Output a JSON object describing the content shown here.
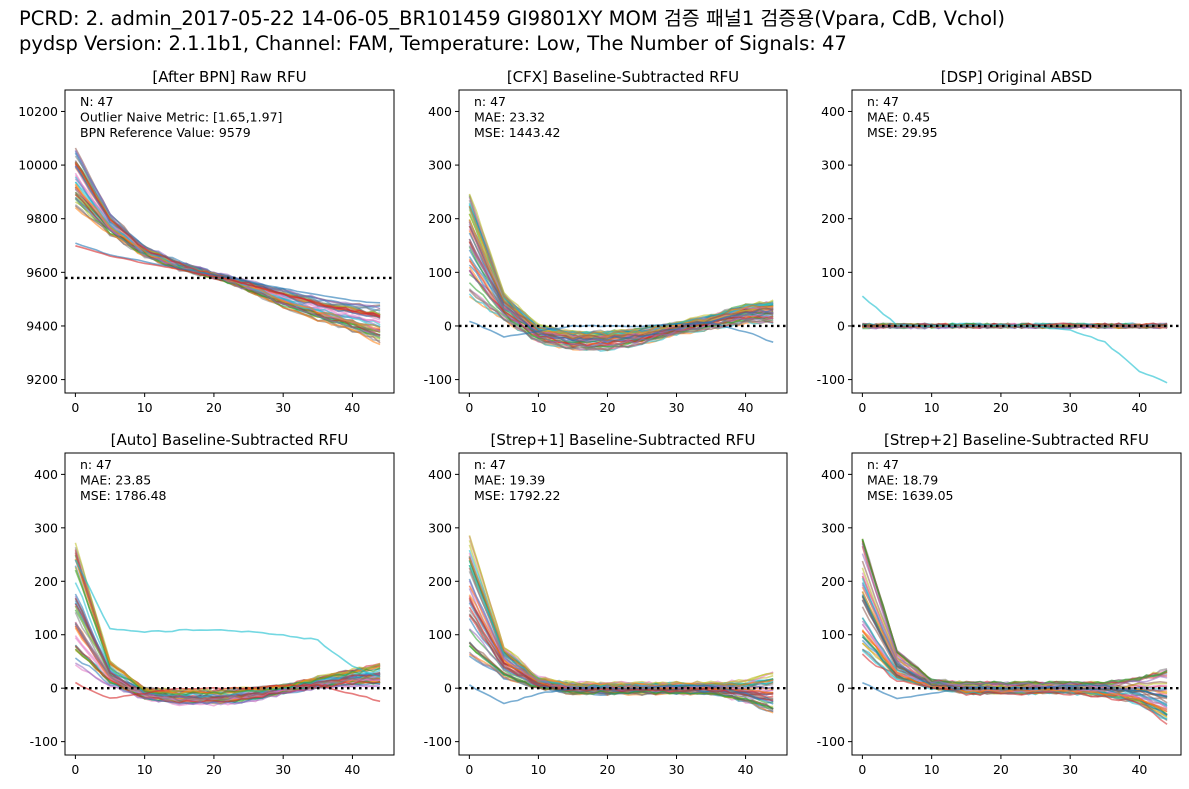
{
  "figure": {
    "suptitle_line1": "PCRD: 2. admin_2017-05-22 14-06-05_BR101459 GI9801XY MOM 검증 패널1 검증용(Vpara, CdB, Vchol)",
    "suptitle_line2": "pydsp Version: 2.1.1b1, Channel: FAM, Temperature: Low, The Number of Signals: 47"
  },
  "colors": [
    "#1f77b4",
    "#ff7f0e",
    "#2ca02c",
    "#d62728",
    "#9467bd",
    "#8c564b",
    "#e377c2",
    "#7f7f7f",
    "#bcbd22",
    "#17becf"
  ],
  "chart_data": [
    {
      "type": "line",
      "title": "[After BPN] Raw RFU",
      "xlim": [
        -1.5,
        46
      ],
      "ylim": [
        9150,
        10280
      ],
      "xticks": [
        0,
        10,
        20,
        30,
        40
      ],
      "yticks": [
        9200,
        9400,
        9600,
        9800,
        10000,
        10200
      ],
      "reference_line": 9579,
      "n_series": 47,
      "stats": [
        "N: 47",
        "Outlier Naive Metric: [1.65,1.97]",
        "BPN Reference Value: 9579"
      ],
      "x": [
        0,
        5,
        10,
        15,
        20,
        25,
        30,
        35,
        40,
        44
      ],
      "series_envelope": {
        "upper": [
          10080,
          9820,
          9700,
          9640,
          9600,
          9570,
          9540,
          9510,
          9490,
          9485
        ],
        "lower": [
          9840,
          9740,
          9660,
          9610,
          9580,
          9530,
          9470,
          9420,
          9380,
          9335
        ]
      },
      "highlighted_series": [
        {
          "values": [
            9710,
            9665,
            9640,
            9615,
            9590,
            9565,
            9540,
            9515,
            9495,
            9485
          ]
        },
        {
          "values": [
            9700,
            9660,
            9635,
            9610,
            9585,
            9555,
            9520,
            9485,
            9455,
            9435
          ]
        }
      ]
    },
    {
      "type": "line",
      "title": "[CFX] Baseline-Subtracted RFU",
      "xlim": [
        -1.5,
        46
      ],
      "ylim": [
        -125,
        440
      ],
      "xticks": [
        0,
        10,
        20,
        30,
        40
      ],
      "yticks": [
        -100,
        0,
        100,
        200,
        300,
        400
      ],
      "reference_line": 0,
      "n_series": 47,
      "stats": [
        "n: 47",
        "MAE: 23.32",
        "MSE: 1443.42"
      ],
      "x": [
        0,
        5,
        10,
        15,
        20,
        25,
        30,
        35,
        40,
        44
      ],
      "series_envelope": {
        "upper": [
          250,
          60,
          0,
          -10,
          -10,
          -5,
          5,
          20,
          40,
          45
        ],
        "lower": [
          50,
          10,
          -30,
          -45,
          -45,
          -35,
          -15,
          -5,
          5,
          5
        ]
      },
      "highlighted_series": [
        {
          "values": [
            10,
            -20,
            -10,
            0,
            0,
            0,
            5,
            5,
            -10,
            -30
          ]
        }
      ]
    },
    {
      "type": "line",
      "title": "[DSP] Original ABSD",
      "xlim": [
        -1.5,
        46
      ],
      "ylim": [
        -125,
        440
      ],
      "xticks": [
        0,
        10,
        20,
        30,
        40
      ],
      "yticks": [
        -100,
        0,
        100,
        200,
        300,
        400
      ],
      "reference_line": 0,
      "n_series": 47,
      "stats": [
        "n: 47",
        "MAE: 0.45",
        "MSE: 29.95"
      ],
      "x": [
        0,
        5,
        10,
        15,
        20,
        25,
        30,
        35,
        40,
        44
      ],
      "series_envelope": {
        "upper": [
          2,
          2,
          2,
          2,
          2,
          2,
          2,
          2,
          2,
          2
        ],
        "lower": [
          -2,
          -2,
          -2,
          -2,
          -2,
          -2,
          -2,
          -2,
          -2,
          -2
        ]
      },
      "highlighted_series": [
        {
          "values": [
            55,
            2,
            0,
            0,
            3,
            0,
            -8,
            -30,
            -85,
            -105
          ]
        }
      ]
    },
    {
      "type": "line",
      "title": "[Auto] Baseline-Subtracted RFU",
      "xlim": [
        -1.5,
        46
      ],
      "ylim": [
        -125,
        440
      ],
      "xticks": [
        0,
        10,
        20,
        30,
        40
      ],
      "yticks": [
        -100,
        0,
        100,
        200,
        300,
        400
      ],
      "reference_line": 0,
      "n_series": 47,
      "stats": [
        "n: 47",
        "MAE: 23.85",
        "MSE: 1786.48"
      ],
      "x": [
        0,
        5,
        10,
        15,
        20,
        25,
        30,
        35,
        40,
        44
      ],
      "series_envelope": {
        "upper": [
          270,
          50,
          0,
          -5,
          -5,
          0,
          5,
          20,
          35,
          45
        ],
        "lower": [
          40,
          5,
          -20,
          -30,
          -30,
          -25,
          -10,
          0,
          5,
          5
        ]
      },
      "highlighted_series": [
        {
          "values": [
            240,
            110,
            105,
            108,
            110,
            105,
            100,
            90,
            40,
            20
          ]
        },
        {
          "values": [
            10,
            -20,
            -10,
            0,
            0,
            0,
            5,
            5,
            -10,
            -25
          ]
        }
      ]
    },
    {
      "type": "line",
      "title": "[Strep+1] Baseline-Subtracted RFU",
      "xlim": [
        -1.5,
        46
      ],
      "ylim": [
        -125,
        440
      ],
      "xticks": [
        0,
        10,
        20,
        30,
        40
      ],
      "yticks": [
        -100,
        0,
        100,
        200,
        300,
        400
      ],
      "reference_line": 0,
      "n_series": 47,
      "stats": [
        "n: 47",
        "MAE: 19.39",
        "MSE: 1792.22"
      ],
      "x": [
        0,
        5,
        10,
        15,
        20,
        25,
        30,
        35,
        40,
        44
      ],
      "series_envelope": {
        "upper": [
          290,
          80,
          20,
          10,
          10,
          10,
          10,
          10,
          15,
          30
        ],
        "lower": [
          60,
          20,
          0,
          -10,
          -10,
          -10,
          -10,
          -10,
          -25,
          -45
        ]
      },
      "highlighted_series": [
        {
          "values": [
            5,
            -30,
            -10,
            0,
            0,
            0,
            5,
            5,
            -10,
            -30
          ]
        }
      ]
    },
    {
      "type": "line",
      "title": "[Strep+2] Baseline-Subtracted RFU",
      "xlim": [
        -1.5,
        46
      ],
      "ylim": [
        -125,
        440
      ],
      "xticks": [
        0,
        10,
        20,
        30,
        40
      ],
      "yticks": [
        -100,
        0,
        100,
        200,
        300,
        400
      ],
      "reference_line": 0,
      "n_series": 47,
      "stats": [
        "n: 47",
        "MAE: 18.79",
        "MSE: 1639.05"
      ],
      "x": [
        0,
        5,
        10,
        15,
        20,
        25,
        30,
        35,
        40,
        44
      ],
      "series_envelope": {
        "upper": [
          285,
          70,
          15,
          10,
          10,
          10,
          10,
          10,
          20,
          35
        ],
        "lower": [
          60,
          15,
          0,
          -10,
          -10,
          -10,
          -10,
          -15,
          -30,
          -65
        ]
      },
      "highlighted_series": [
        {
          "values": [
            10,
            -20,
            -10,
            0,
            0,
            0,
            5,
            5,
            -10,
            -30
          ]
        }
      ]
    }
  ]
}
